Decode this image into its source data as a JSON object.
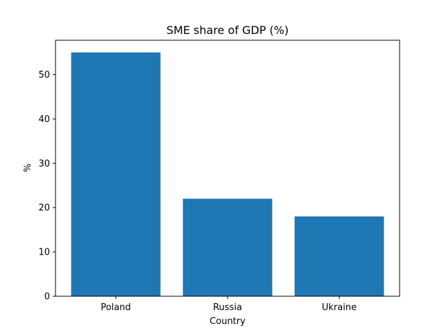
{
  "chart_data": {
    "type": "bar",
    "title": "SME share of GDP (%)",
    "xlabel": "Country",
    "ylabel": "%",
    "categories": [
      "Poland",
      "Russia",
      "Ukraine"
    ],
    "values": [
      55,
      22,
      18
    ],
    "ylim": [
      0,
      57.75
    ],
    "yticks": [
      0,
      10,
      20,
      30,
      40,
      50
    ],
    "bar_color": "#1f77b4",
    "grid": false,
    "legend": "none"
  }
}
